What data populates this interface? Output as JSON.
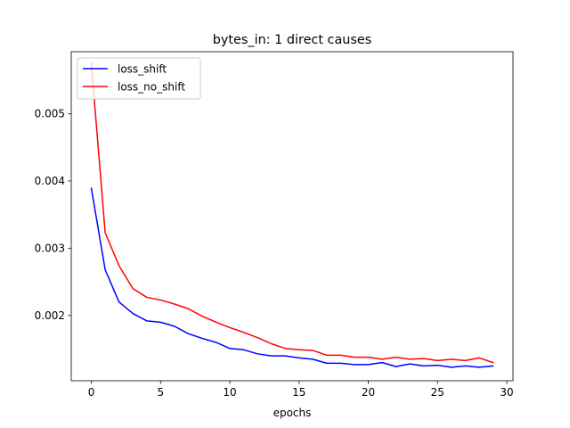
{
  "chart_data": {
    "type": "line",
    "title": "bytes_in: 1 direct causes",
    "xlabel": "epochs",
    "ylabel": "",
    "xlim": [
      -1.45,
      30.45
    ],
    "ylim": [
      0.00103,
      0.00592
    ],
    "x_ticks": [
      0,
      5,
      10,
      15,
      20,
      25,
      30
    ],
    "x_tick_labels": [
      "0",
      "5",
      "10",
      "15",
      "20",
      "25",
      "30"
    ],
    "y_ticks": [
      0.002,
      0.003,
      0.004,
      0.005
    ],
    "y_tick_labels": [
      "0.002",
      "0.003",
      "0.004",
      "0.005"
    ],
    "grid": false,
    "legend_position": "top-left",
    "x": [
      0,
      1,
      2,
      3,
      4,
      5,
      6,
      7,
      8,
      9,
      10,
      11,
      12,
      13,
      14,
      15,
      16,
      17,
      18,
      19,
      20,
      21,
      22,
      23,
      24,
      25,
      26,
      27,
      28,
      29
    ],
    "series": [
      {
        "name": "loss_shift",
        "color": "#0000ff",
        "values": [
          0.00389,
          0.00268,
          0.0022,
          0.00203,
          0.00192,
          0.0019,
          0.00184,
          0.00173,
          0.00166,
          0.0016,
          0.00151,
          0.00149,
          0.00143,
          0.0014,
          0.0014,
          0.00137,
          0.00135,
          0.00129,
          0.00129,
          0.00127,
          0.00127,
          0.0013,
          0.00124,
          0.00128,
          0.00125,
          0.00126,
          0.00123,
          0.00125,
          0.00123,
          0.00125
        ]
      },
      {
        "name": "loss_no_shift",
        "color": "#ff0000",
        "values": [
          0.00575,
          0.00323,
          0.00274,
          0.0024,
          0.00227,
          0.00223,
          0.00217,
          0.0021,
          0.00199,
          0.0019,
          0.00182,
          0.00175,
          0.00167,
          0.00158,
          0.00151,
          0.00149,
          0.00148,
          0.00141,
          0.00141,
          0.00138,
          0.00138,
          0.00135,
          0.00138,
          0.00135,
          0.00136,
          0.00133,
          0.00135,
          0.00133,
          0.00137,
          0.0013
        ]
      }
    ]
  }
}
